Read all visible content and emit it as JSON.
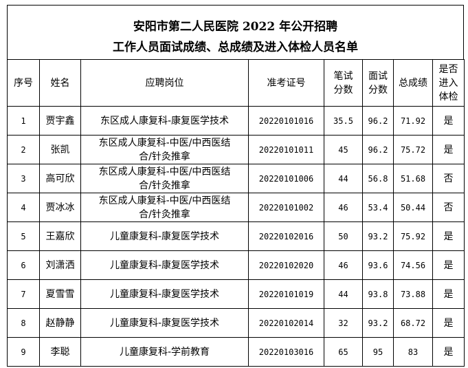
{
  "title": {
    "line1": "安阳市第二人民医院 2022 年公开招聘",
    "line2": "工作人员面试成绩、总成绩及进入体检人员名单"
  },
  "columns": [
    "序号",
    "姓名",
    "应聘岗位",
    "准考证号",
    "笔试分数",
    "面试分数",
    "总成绩",
    "是否进入体检"
  ],
  "rows": [
    {
      "no": "1",
      "name": "贾宇鑫",
      "position": "东区成人康复科-康复医学技术",
      "exam_id": "20220101016",
      "written": "35.5",
      "interview": "96.2",
      "total": "71.92",
      "physical": "是"
    },
    {
      "no": "2",
      "name": "张凯",
      "position": "东区成人康复科-中医/中西医结合/针灸推拿",
      "exam_id": "20220101011",
      "written": "45",
      "interview": "96.2",
      "total": "75.72",
      "physical": "是"
    },
    {
      "no": "3",
      "name": "高可欣",
      "position": "东区成人康复科-中医/中西医结合/针灸推拿",
      "exam_id": "20220101006",
      "written": "44",
      "interview": "56.8",
      "total": "51.68",
      "physical": "否"
    },
    {
      "no": "4",
      "name": "贾冰冰",
      "position": "东区成人康复科-中医/中西医结合/针灸推拿",
      "exam_id": "20220101002",
      "written": "46",
      "interview": "53.4",
      "total": "50.44",
      "physical": "否"
    },
    {
      "no": "5",
      "name": "王嘉欣",
      "position": "儿童康复科-康复医学技术",
      "exam_id": "20220102016",
      "written": "50",
      "interview": "93.2",
      "total": "75.92",
      "physical": "是"
    },
    {
      "no": "6",
      "name": "刘潇洒",
      "position": "儿童康复科-康复医学技术",
      "exam_id": "20220102020",
      "written": "46",
      "interview": "93.6",
      "total": "74.56",
      "physical": "是"
    },
    {
      "no": "7",
      "name": "夏雪雪",
      "position": "儿童康复科-康复医学技术",
      "exam_id": "20220101019",
      "written": "44",
      "interview": "93.8",
      "total": "73.88",
      "physical": "是"
    },
    {
      "no": "8",
      "name": "赵静静",
      "position": "儿童康复科-康复医学技术",
      "exam_id": "20220102014",
      "written": "32",
      "interview": "93.2",
      "total": "68.72",
      "physical": "是"
    },
    {
      "no": "9",
      "name": "李聪",
      "position": "儿童康复科-学前教育",
      "exam_id": "20220103016",
      "written": "65",
      "interview": "95",
      "total": "83",
      "physical": "是"
    }
  ]
}
